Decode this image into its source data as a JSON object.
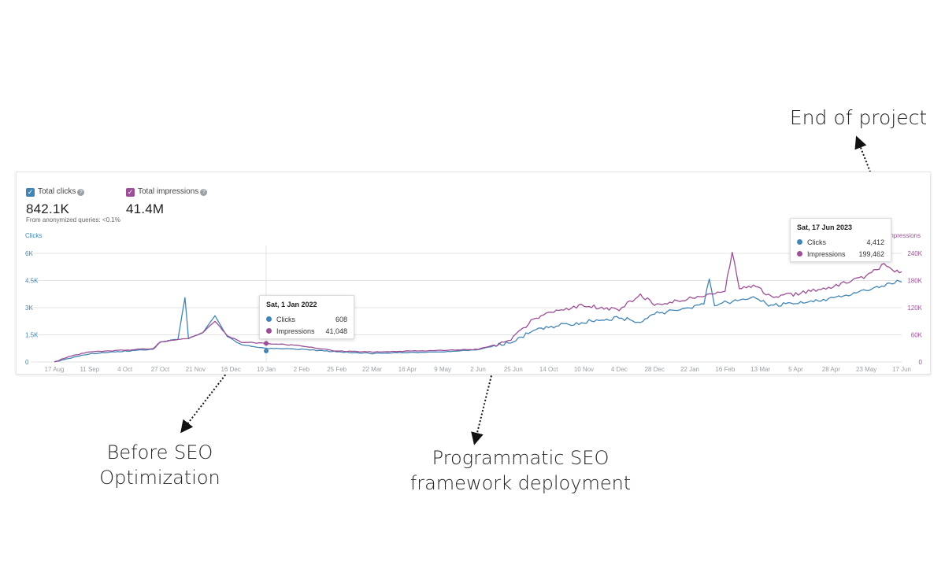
{
  "annotations": {
    "end_of_project": "End of project",
    "before_seo_line1": "Before SEO",
    "before_seo_line2": "Optimization",
    "deploy_line1": "Programmatic SEO",
    "deploy_line2": "framework deployment"
  },
  "metrics": {
    "clicks_label": "Total clicks",
    "clicks_value": "842.1K",
    "impressions_label": "Total impressions",
    "impressions_value": "41.4M",
    "anonymized_note": "From anonymized queries: <0.1%"
  },
  "tooltips": [
    {
      "date": "Sat, 1 Jan 2022",
      "clicks_label": "Clicks",
      "clicks_value": "608",
      "impressions_label": "Impressions",
      "impressions_value": "41,048"
    },
    {
      "date": "Sat, 17 Jun 2023",
      "clicks_label": "Clicks",
      "clicks_value": "4,412",
      "impressions_label": "Impressions",
      "impressions_value": "199,462"
    }
  ],
  "colors": {
    "clicks": "#4285b4",
    "impressions": "#9b4f96",
    "grid": "#e3e3e3",
    "axis_text": "#9aa0a6"
  },
  "chart_data": {
    "type": "line",
    "title": "",
    "x_tick_labels": [
      "17 Aug",
      "11 Sep",
      "4 Oct",
      "27 Oct",
      "21 Nov",
      "16 Dec",
      "10 Jan",
      "2 Feb",
      "25 Feb",
      "22 Mar",
      "16 Apr",
      "9 May",
      "2 Jun",
      "25 Jun",
      "14 Oct",
      "10 Nov",
      "4 Dec",
      "28 Dec",
      "22 Jan",
      "16 Feb",
      "13 Mar",
      "5 Apr",
      "28 Apr",
      "23 May",
      "17 Jun"
    ],
    "y_left": {
      "label": "Clicks",
      "ticks": [
        "0",
        "1.5K",
        "3K",
        "4.5K",
        "6K"
      ],
      "range": [
        0,
        6000
      ]
    },
    "y_right": {
      "label": "Impressions",
      "ticks": [
        "0",
        "60K",
        "120K",
        "180K",
        "240K"
      ],
      "range": [
        0,
        240000
      ]
    },
    "x_range": [
      0,
      24
    ],
    "series": [
      {
        "name": "Clicks",
        "axis": "left",
        "points": [
          [
            0,
            0
          ],
          [
            0.4,
            200
          ],
          [
            1,
            450
          ],
          [
            2,
            600
          ],
          [
            2.8,
            700
          ],
          [
            3,
            1100
          ],
          [
            3.5,
            1250
          ],
          [
            3.7,
            3550
          ],
          [
            3.8,
            1300
          ],
          [
            4.2,
            1600
          ],
          [
            4.55,
            2550
          ],
          [
            4.9,
            1400
          ],
          [
            5.3,
            950
          ],
          [
            6,
            750
          ],
          [
            7,
            700
          ],
          [
            8,
            560
          ],
          [
            9,
            470
          ],
          [
            10,
            520
          ],
          [
            11,
            560
          ],
          [
            12,
            670
          ],
          [
            12.6,
            960
          ],
          [
            13,
            1150
          ],
          [
            13.5,
            1650
          ],
          [
            14,
            1950
          ],
          [
            15,
            2200
          ],
          [
            16,
            2450
          ],
          [
            16.6,
            2200
          ],
          [
            17,
            2650
          ],
          [
            18,
            3000
          ],
          [
            18.4,
            3200
          ],
          [
            18.55,
            4600
          ],
          [
            18.7,
            3200
          ],
          [
            19.5,
            3400
          ],
          [
            19.8,
            3700
          ],
          [
            20.3,
            3100
          ],
          [
            21,
            3250
          ],
          [
            22,
            3500
          ],
          [
            23,
            4000
          ],
          [
            23.8,
            4412
          ],
          [
            24,
            4412
          ]
        ]
      },
      {
        "name": "Impressions",
        "axis": "right",
        "points": [
          [
            0,
            0
          ],
          [
            0.4,
            12000
          ],
          [
            1,
            22000
          ],
          [
            2,
            26000
          ],
          [
            2.8,
            30000
          ],
          [
            3,
            44000
          ],
          [
            3.5,
            50000
          ],
          [
            3.8,
            52000
          ],
          [
            4.2,
            65000
          ],
          [
            4.55,
            90000
          ],
          [
            4.9,
            58000
          ],
          [
            5.3,
            44000
          ],
          [
            6,
            41048
          ],
          [
            7,
            36000
          ],
          [
            8,
            24000
          ],
          [
            9,
            22000
          ],
          [
            10,
            24000
          ],
          [
            11,
            26000
          ],
          [
            12,
            28000
          ],
          [
            12.6,
            40000
          ],
          [
            13,
            54000
          ],
          [
            13.5,
            90000
          ],
          [
            14,
            110000
          ],
          [
            15,
            125000
          ],
          [
            16,
            115000
          ],
          [
            16.6,
            150000
          ],
          [
            17,
            125000
          ],
          [
            18,
            140000
          ],
          [
            18.5,
            150000
          ],
          [
            19,
            160000
          ],
          [
            19.2,
            243000
          ],
          [
            19.4,
            160000
          ],
          [
            19.8,
            170000
          ],
          [
            20.3,
            145000
          ],
          [
            21,
            150000
          ],
          [
            22,
            165000
          ],
          [
            23,
            190000
          ],
          [
            23.5,
            215000
          ],
          [
            23.8,
            199462
          ],
          [
            24,
            199462
          ]
        ]
      }
    ]
  }
}
